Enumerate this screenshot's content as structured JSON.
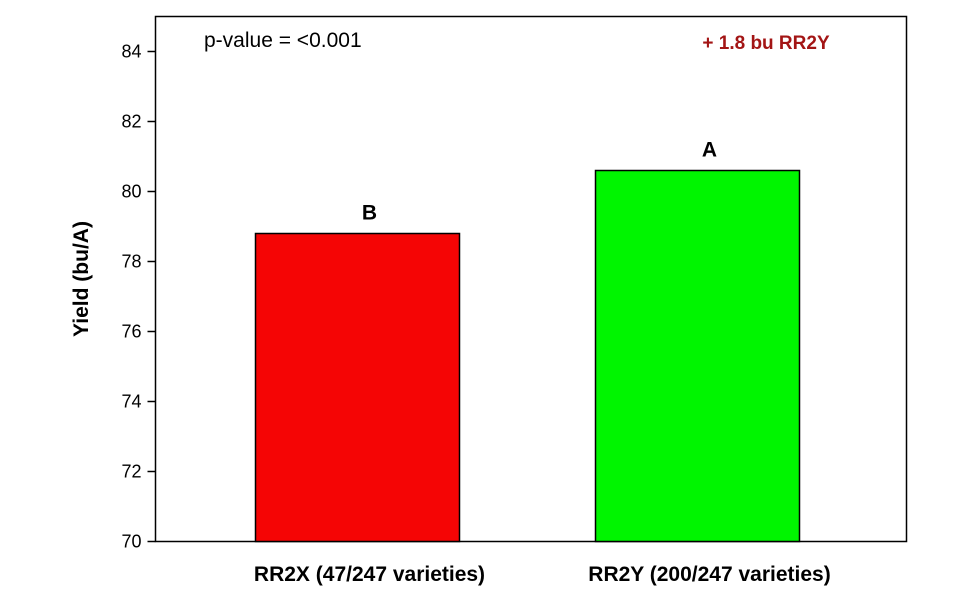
{
  "chart_data": {
    "type": "bar",
    "categories": [
      "RR2X (47/247 varieties)",
      "RR2Y (200/247 varieties)"
    ],
    "values": [
      78.8,
      80.6
    ],
    "colors": [
      "#f50505",
      "#00f500"
    ],
    "bar_labels": [
      "B",
      "A"
    ],
    "title": "",
    "xlabel": "",
    "ylabel": "Yield (bu/A)",
    "ylim": [
      70,
      85
    ],
    "yticks": [
      70,
      72,
      74,
      76,
      78,
      80,
      82,
      84
    ],
    "grid": false,
    "legend": "none",
    "annotations": {
      "p_value": "p-value = <0.001",
      "difference": "+ 1.8 bu RR2Y",
      "difference_color": "#a31515"
    }
  }
}
